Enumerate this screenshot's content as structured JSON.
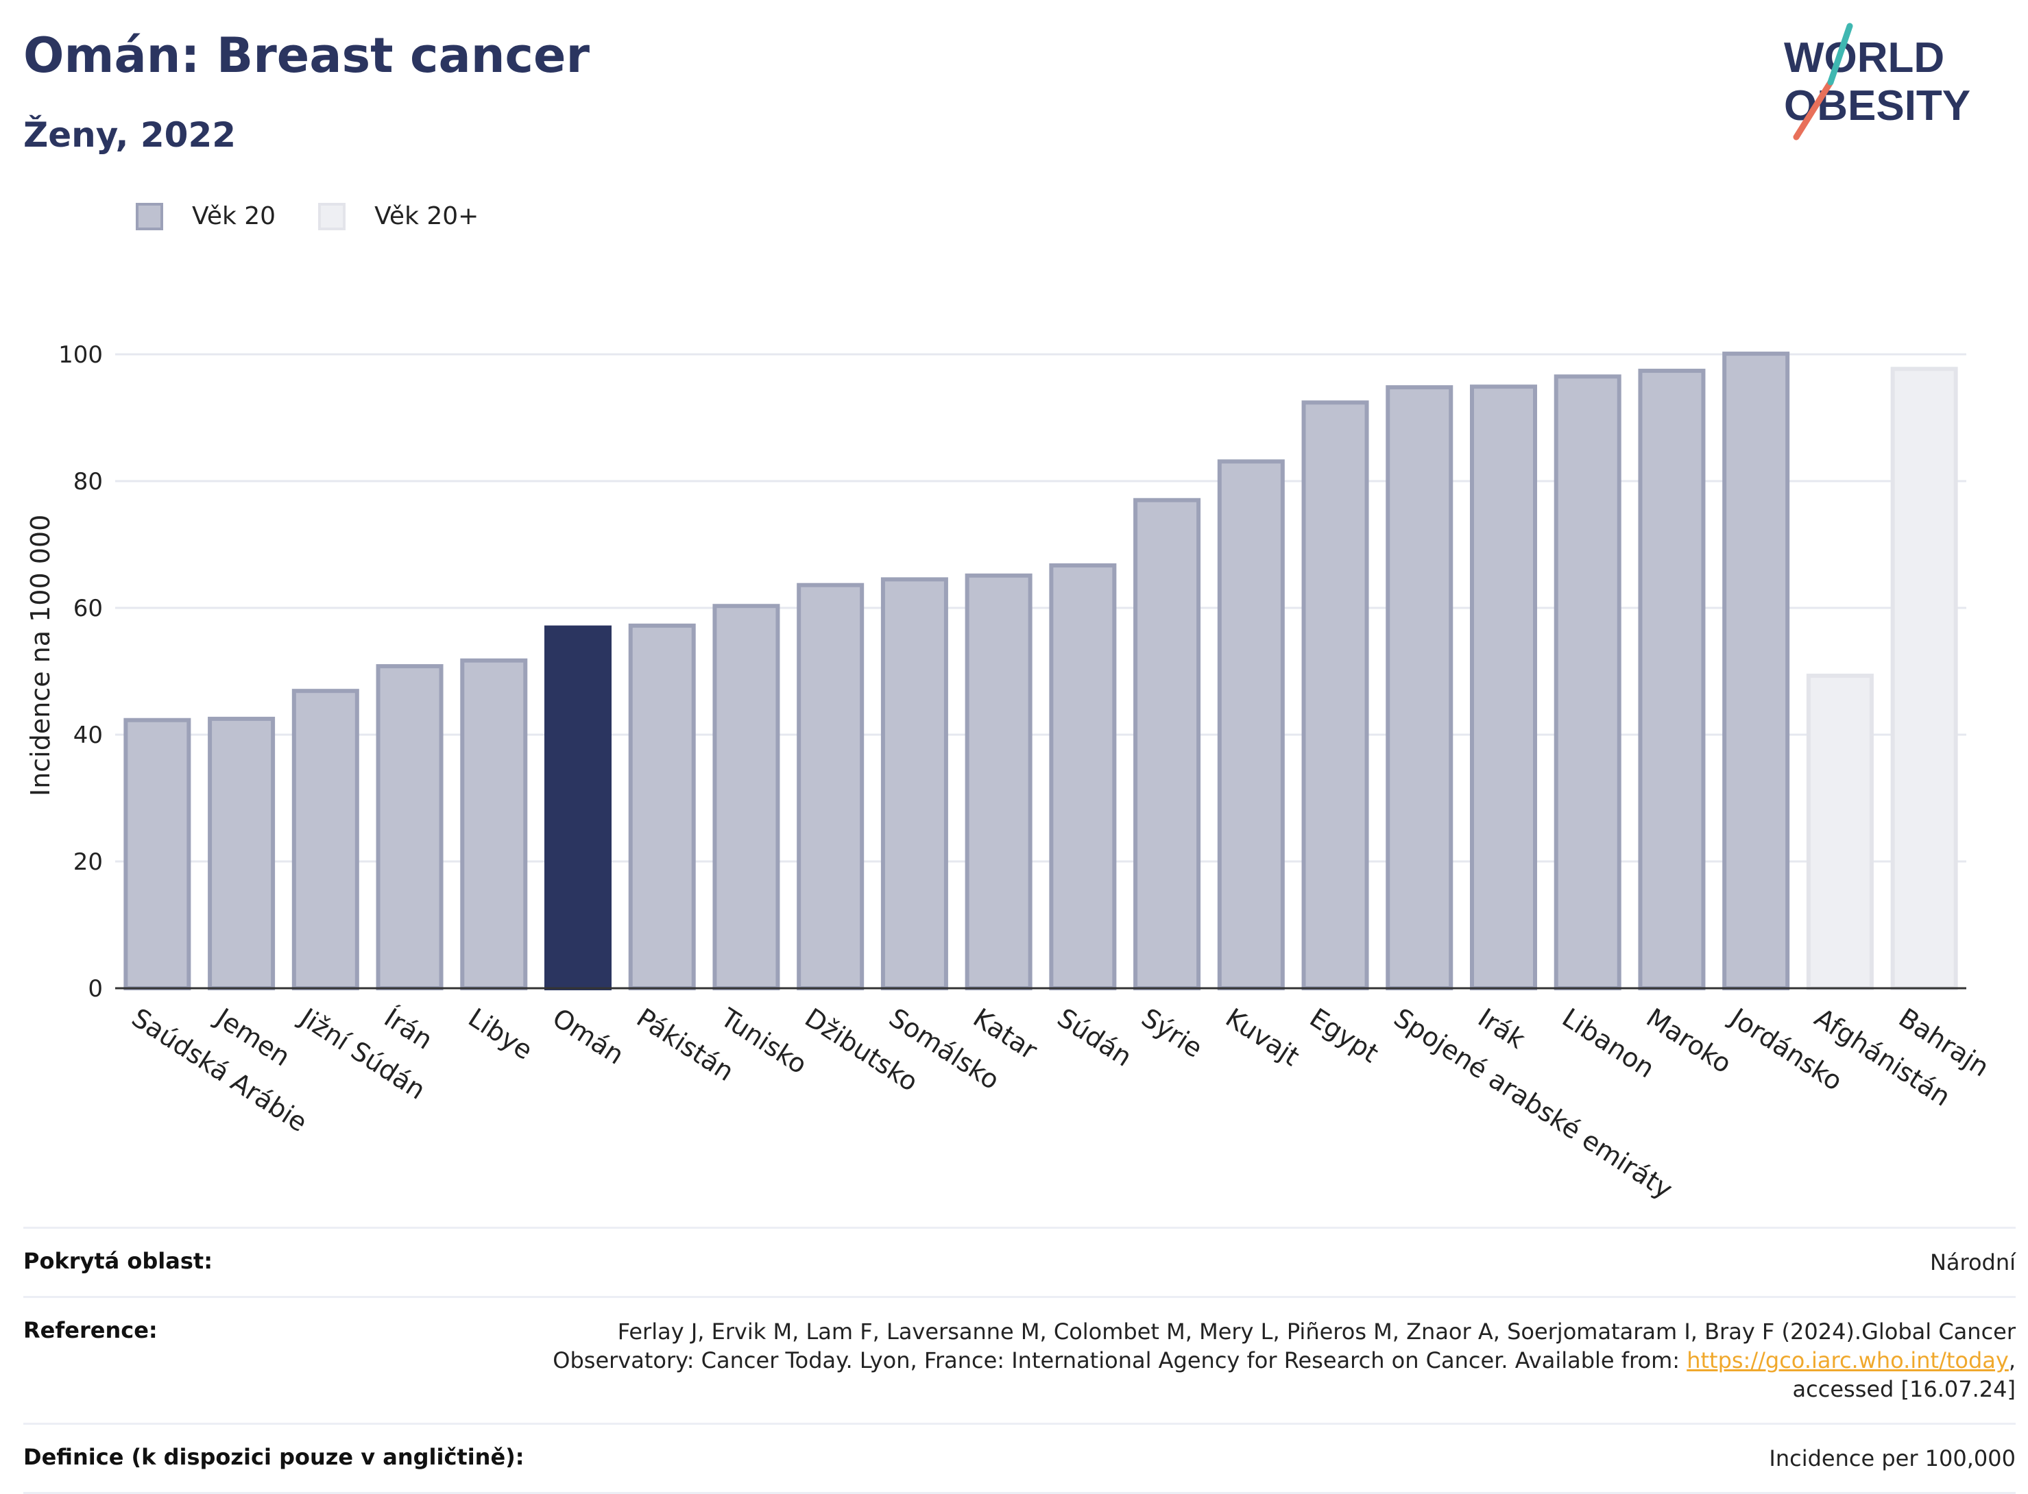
{
  "header": {
    "title": "Omán: Breast cancer",
    "subtitle": "Ženy, 2022",
    "logo_text_1": "WORLD",
    "logo_text_2": "OBESITY"
  },
  "legend": [
    {
      "label": "Věk 20",
      "color": "#bec1d0",
      "border": "#9ca1b8"
    },
    {
      "label": "Věk 20+",
      "color": "#eeeff3",
      "border": "#e3e4ea"
    }
  ],
  "chart_data": {
    "type": "bar",
    "ylabel": "Incidence na 100 000",
    "ylim": [
      0,
      105
    ],
    "yticks": [
      0,
      20,
      40,
      60,
      80,
      100
    ],
    "grid": true,
    "categories": [
      "Saúdská Arábie",
      "Jemen",
      "Jižní Súdán",
      "Írán",
      "Libye",
      "Omán",
      "Pákistán",
      "Tunisko",
      "Džibutsko",
      "Somálsko",
      "Katar",
      "Súdán",
      "Sýrie",
      "Kuvajt",
      "Egypt",
      "Spojené arabské emiráty",
      "Irák",
      "Libanon",
      "Maroko",
      "Jordánsko",
      "Afghánistán",
      "Bahrajn"
    ],
    "values": [
      42.3,
      42.5,
      46.9,
      50.8,
      51.7,
      56.9,
      57.2,
      60.3,
      63.6,
      64.5,
      65.1,
      66.7,
      77.0,
      83.1,
      92.4,
      94.8,
      94.9,
      96.5,
      97.4,
      100.1,
      49.3,
      97.7
    ],
    "series_group": [
      "Věk 20",
      "Věk 20",
      "Věk 20",
      "Věk 20",
      "Věk 20",
      "Věk 20",
      "Věk 20",
      "Věk 20",
      "Věk 20",
      "Věk 20",
      "Věk 20",
      "Věk 20",
      "Věk 20",
      "Věk 20",
      "Věk 20",
      "Věk 20",
      "Věk 20",
      "Věk 20",
      "Věk 20",
      "Věk 20",
      "Věk 20+",
      "Věk 20+"
    ],
    "highlight": "Omán",
    "colors": {
      "bar_fill": "#bec1d0",
      "bar_border": "#9ca1b8",
      "alt_fill": "#eeeff3",
      "alt_border": "#e3e4ea",
      "highlight": "#2b3560",
      "grid": "#e6e8ef",
      "axis": "#333333"
    }
  },
  "footer": {
    "coverage_label": "Pokrytá oblast:",
    "coverage_value": "Národní",
    "reference_label": "Reference:",
    "reference_text_1": "Ferlay J, Ervik M, Lam F, Laversanne M, Colombet M, Mery L, Piñeros M, Znaor A, Soerjomataram I, Bray F (2024).Global Cancer",
    "reference_text_2": "Observatory: Cancer Today. Lyon, France: International Agency for Research on Cancer. Available from: ",
    "reference_link": "https://gco.iarc.who.int/today",
    "reference_text_3": ",",
    "reference_text_4": "accessed [16.07.24]",
    "definition_label": "Definice (k dispozici pouze v angličtině):",
    "definition_value": "Incidence per 100,000"
  }
}
